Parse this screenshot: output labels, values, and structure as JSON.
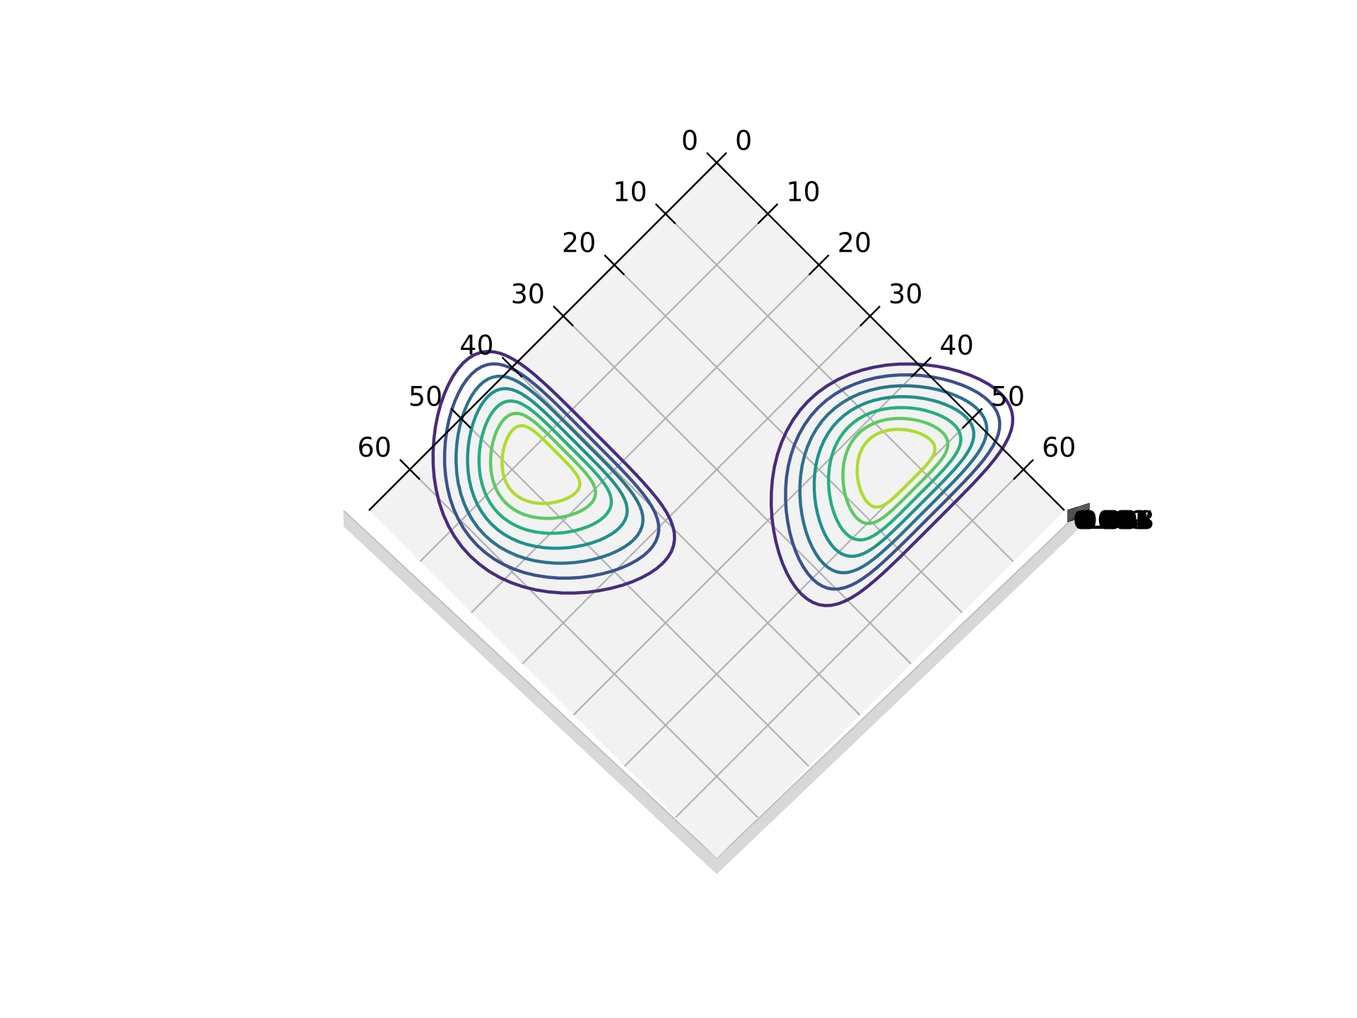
{
  "chart_data": {
    "type": "contour",
    "view": "3d-top-down-rotated-45",
    "grid": true,
    "pane_color": "#f2f2f2",
    "axes": {
      "left": {
        "ticks": [
          0,
          10,
          20,
          30,
          40,
          50,
          60
        ],
        "range": [
          0,
          68
        ]
      },
      "right": {
        "ticks": [
          0,
          10,
          20,
          30,
          40,
          50,
          60
        ],
        "range": [
          0,
          68
        ]
      },
      "z_tick_labels_overlapping": [
        "0.000",
        "0.001",
        "0.002",
        "0.003",
        "0.004",
        "0.005",
        "0.006",
        "0.007",
        "0.008"
      ]
    },
    "colormap": "viridis",
    "levels": [
      1,
      2,
      3,
      4,
      5,
      6
    ],
    "level_colors": [
      "#472d7b",
      "#3b528b",
      "#2c728e",
      "#21918c",
      "#28ae80",
      "#5ec962",
      "#addc30"
    ],
    "blobs": [
      {
        "name": "left-blob",
        "center": [
          12,
          47
        ]
      },
      {
        "name": "right-blob",
        "center": [
          47,
          12
        ]
      }
    ]
  }
}
